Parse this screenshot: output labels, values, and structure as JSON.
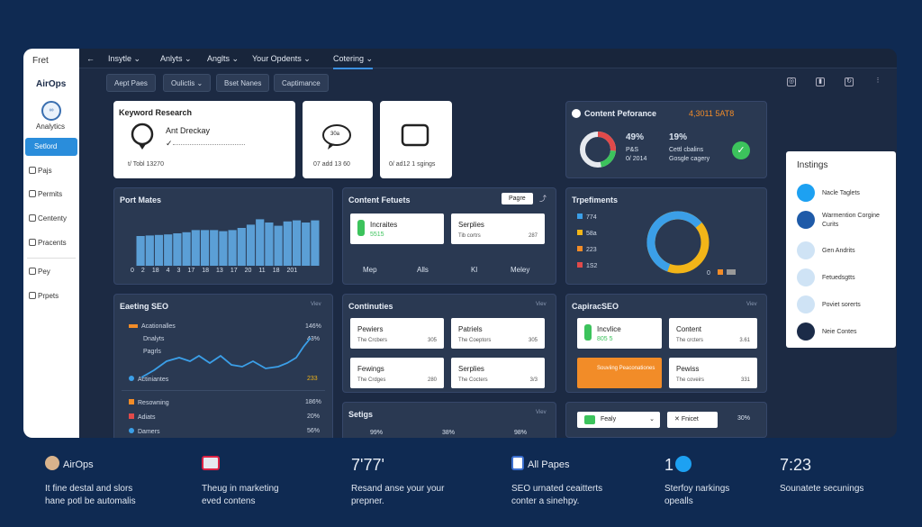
{
  "sidebar": {
    "top": "Fret",
    "brand": "AirOps",
    "analytics_icon": "∞",
    "analytics": "Analytics",
    "active": "Setlord",
    "items": [
      "Pajs",
      "Permits",
      "Cententy",
      "Pracents",
      "Pey",
      "Prpets"
    ]
  },
  "topbar": {
    "tabs": [
      "Insytle ⌄",
      "Anlyts ⌄",
      "Anglts ⌄",
      "Your Opdents ⌄",
      "Cotering ⌄"
    ]
  },
  "chips": [
    "Aept Paes",
    "Oulictis ⌄",
    "Bset Nanes",
    "Captimance"
  ],
  "keyword": {
    "title": "Keyword Research",
    "name": "Ant Dreckay",
    "check": "✓",
    "foot": "t/ Tobl 13270",
    "bubble": "30a",
    "foot2": "07 add 13 60",
    "foot3": "0/ ad12 1 sgings"
  },
  "perf": {
    "title": "Content Peforance",
    "value": "4,3011 5AT8",
    "p1": "49%",
    "p1_sub": "P&S",
    "p1_sub2": "0/ 2014",
    "p2": "19%",
    "p2_sub": "Cettl cbalins",
    "p2_sub2": "Gosgle cagery"
  },
  "port": {
    "title": "Port Mates",
    "xticks": [
      "0",
      "2",
      "18",
      "4",
      "3",
      "17",
      "18",
      "13",
      "17",
      "20",
      "11",
      "18",
      "201"
    ]
  },
  "content_feats": {
    "title": "Content Fetuets",
    "btn": "Pagre",
    "c1": "Incraites",
    "c1v": "5515",
    "c2": "Serplies",
    "c2l": "Tib cortrs",
    "c2v": "287",
    "cols": [
      "Mep",
      "Alls",
      "Kl",
      "Meley"
    ]
  },
  "traffic": {
    "title": "Trpefiments",
    "items": [
      "774",
      "58a",
      "223",
      "1S2"
    ],
    "foot": "0"
  },
  "earning": {
    "title": "Eaeting SEO",
    "l1": "Acationalles",
    "l2": "Dnalyts",
    "l3": "Pagrls",
    "v1": "146%",
    "v2": "43%",
    "mid": "Actiniantes",
    "mid_v": "233",
    "rows": [
      [
        "Resowning",
        "186%"
      ],
      [
        "Adiats",
        "20%"
      ],
      [
        "Damers",
        "56%"
      ]
    ]
  },
  "contin": {
    "title": "Continuties",
    "cards": [
      [
        "Pewiers",
        "The Crcbers",
        "305"
      ],
      [
        "Patriels",
        "The Coeptors",
        "305"
      ],
      [
        "Fewings",
        "The Crdges",
        "280"
      ],
      [
        "Serplies",
        "The Cocters",
        "3/3"
      ]
    ]
  },
  "capi": {
    "title": "CapiracSEO",
    "a": "Incvlice",
    "av": "805 5",
    "b": "Content",
    "bl": "The crcters",
    "bv": "3.61",
    "c": "Souviing Peaconationes",
    "d": "Pewiss",
    "dl": "The coveirs",
    "dv": "331"
  },
  "setigs": {
    "title": "Setigs",
    "vals": [
      "99%",
      "38%",
      "98%"
    ]
  },
  "filter": {
    "a": "Fealy",
    "b": "Fnicet",
    "pct": "30%"
  },
  "insights": {
    "title": "Instings",
    "rows": [
      "Nacle Taglets",
      "Warmention Corgine Curits",
      "Gen Andrits",
      "Fetuedsgtts",
      "Poviet sorerts",
      "Neie Contes"
    ]
  },
  "footer": [
    {
      "head": "AirOps",
      "sub": "It fine destal and slors\nhane potl be automalis"
    },
    {
      "head": "",
      "sub": "Theug in marketing\neved contens"
    },
    {
      "head": "7'77'",
      "sub": "Resand anse your your\nprepner."
    },
    {
      "head": "All Papes",
      "sub": "SEO urnated ceaitterts\nconter a sinehpy."
    },
    {
      "head": "1",
      "sub": "Sterfoy narkings\nopealls"
    },
    {
      "head": "7:23",
      "sub": "Sounatete secunings"
    }
  ],
  "colors": {
    "accent": "#2a8ddb",
    "orange": "#f28c28",
    "green": "#3cc35c",
    "blue": "#3b9fe8"
  },
  "bars": [
    0.55,
    0.56,
    0.57,
    0.58,
    0.6,
    0.62,
    0.66,
    0.66,
    0.66,
    0.64,
    0.66,
    0.7,
    0.76,
    0.86,
    0.8,
    0.74,
    0.82,
    0.84,
    0.8,
    0.84
  ]
}
